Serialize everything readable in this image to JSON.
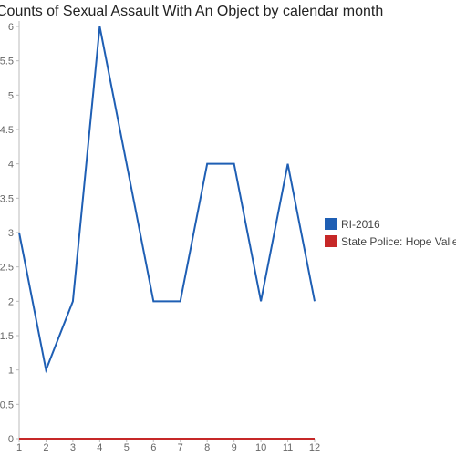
{
  "chart_data": {
    "type": "line",
    "title": "Counts of Sexual Assault With An Object by calendar month",
    "xlabel": "",
    "ylabel": "",
    "x": [
      1,
      2,
      3,
      4,
      5,
      6,
      7,
      8,
      9,
      10,
      11,
      12
    ],
    "ylim": [
      0,
      6
    ],
    "y_ticks": [
      0,
      0.5,
      1,
      1.5,
      2,
      2.5,
      3,
      3.5,
      4,
      4.5,
      5,
      5.5,
      6
    ],
    "grid": false,
    "legend_position": "right",
    "series": [
      {
        "name": "RI-2016",
        "color": "#1f5fb4",
        "values": [
          3,
          1,
          2,
          6,
          4,
          2,
          2,
          4,
          4,
          2,
          4,
          2
        ]
      },
      {
        "name": "State Police: Hope Valley",
        "color": "#c62828",
        "values": [
          0,
          0,
          0,
          0,
          0,
          0,
          0,
          0,
          0,
          0,
          0,
          0
        ]
      }
    ]
  }
}
